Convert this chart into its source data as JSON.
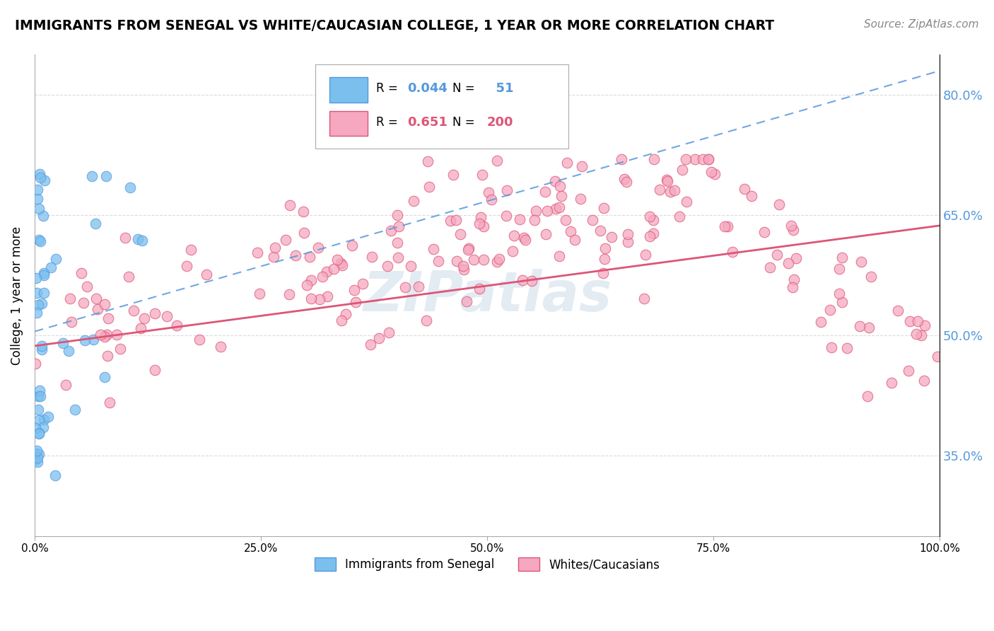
{
  "title": "IMMIGRANTS FROM SENEGAL VS WHITE/CAUCASIAN COLLEGE, 1 YEAR OR MORE CORRELATION CHART",
  "source": "Source: ZipAtlas.com",
  "ylabel": "College, 1 year or more",
  "legend_label1": "Immigrants from Senegal",
  "legend_label2": "Whites/Caucasians",
  "R1": 0.044,
  "N1": 51,
  "R2": 0.651,
  "N2": 200,
  "color1": "#7bbfee",
  "color2": "#f5a8c0",
  "trendline1_color": "#5599dd",
  "trendline2_color": "#dd5577",
  "background_color": "#ffffff",
  "grid_color": "#cccccc",
  "watermark": "ZIPatlas",
  "xlim": [
    0.0,
    1.0
  ],
  "ylim": [
    0.25,
    0.85
  ],
  "yticks": [
    0.35,
    0.5,
    0.65,
    0.8
  ],
  "xticks": [
    0.0,
    0.25,
    0.5,
    0.75,
    1.0
  ],
  "blue_trend_x0": 0.0,
  "blue_trend_y0": 0.505,
  "blue_trend_x1": 1.0,
  "blue_trend_y1": 0.83,
  "pink_trend_x0": 0.0,
  "pink_trend_y0": 0.487,
  "pink_trend_x1": 1.0,
  "pink_trend_y1": 0.637
}
